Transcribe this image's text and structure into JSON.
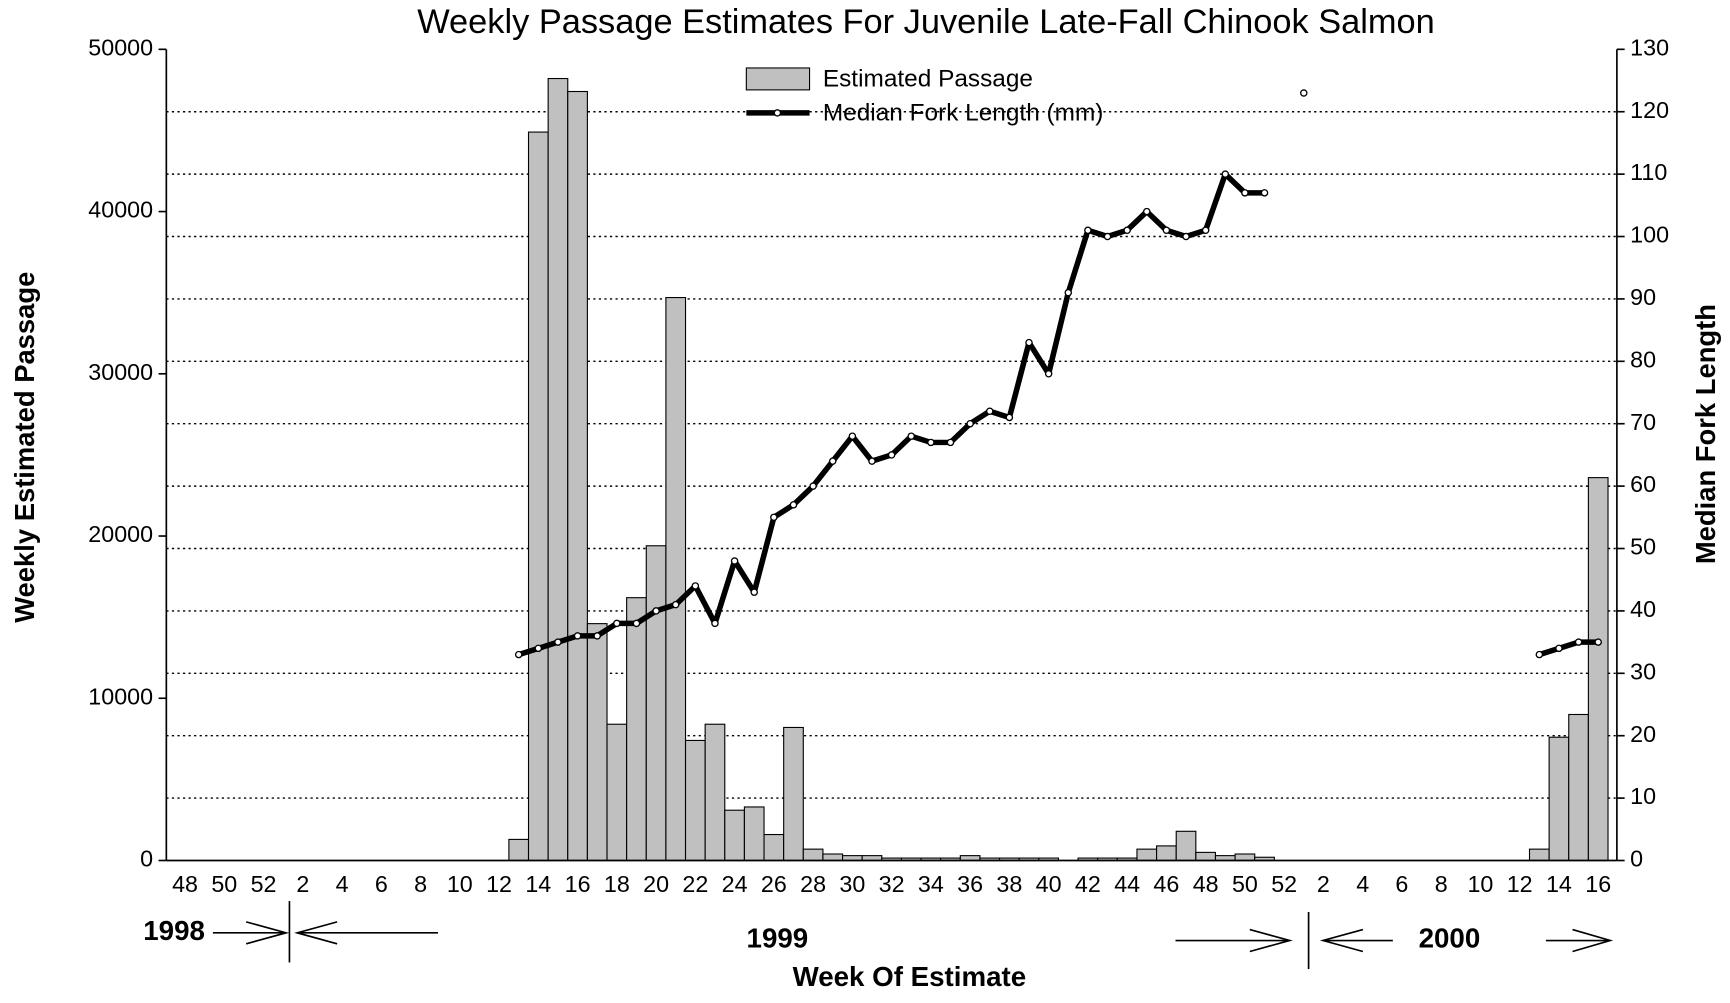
{
  "chart_data": {
    "type": "bar",
    "title": "Weekly Passage Estimates For Juvenile Late-Fall Chinook Salmon",
    "y_label": "Weekly Estimated Passage",
    "y2_label": "Median Fork Length",
    "x_label": "Week Of Estimate",
    "annotations": [
      "1998",
      "1999",
      "2000"
    ],
    "categories": [
      "48",
      null,
      "50",
      null,
      "52",
      null,
      "2",
      null,
      "4",
      null,
      "6",
      null,
      "8",
      null,
      "10",
      null,
      "12",
      null,
      "14",
      null,
      "16",
      null,
      "18",
      null,
      "20",
      null,
      "22",
      null,
      "24",
      null,
      "26",
      null,
      "28",
      null,
      "30",
      null,
      "32",
      null,
      "34",
      null,
      "36",
      null,
      "38",
      null,
      "40",
      null,
      "42",
      null,
      "44",
      null,
      "46",
      null,
      "48",
      null,
      "50",
      null,
      "52",
      null,
      "2",
      null,
      "4",
      null,
      "6",
      null,
      "8",
      null,
      "10",
      null,
      "12",
      null,
      "14",
      null,
      "16"
    ],
    "series": [
      {
        "name": "Estimated Passage",
        "type": "bar",
        "color": "#c0c0c0",
        "values": [
          0,
          0,
          0,
          0,
          0,
          0,
          0,
          0,
          0,
          0,
          0,
          0,
          0,
          0,
          0,
          0,
          0,
          1300,
          44900,
          48200,
          47400,
          14600,
          8400,
          16200,
          19400,
          34700,
          7400,
          8400,
          3100,
          3300,
          1600,
          8200,
          700,
          400,
          300,
          300,
          150,
          150,
          150,
          150,
          300,
          150,
          150,
          150,
          150,
          0,
          150,
          150,
          150,
          700,
          900,
          1800,
          500,
          300,
          400,
          200,
          0,
          0,
          0,
          0,
          0,
          0,
          0,
          0,
          0,
          0,
          0,
          0,
          0,
          700,
          7600,
          9000,
          23600
        ]
      },
      {
        "name": "Median Fork Length (mm)",
        "type": "line",
        "axis": "y2",
        "color": "#000000",
        "values": [
          null,
          null,
          null,
          null,
          null,
          null,
          null,
          null,
          null,
          null,
          null,
          null,
          null,
          null,
          null,
          null,
          null,
          33,
          34,
          35,
          36,
          36,
          38,
          38,
          40,
          41,
          44,
          38,
          48,
          43,
          55,
          57,
          60,
          64,
          68,
          64,
          65,
          68,
          67,
          67,
          70,
          72,
          71,
          83,
          78,
          91,
          101,
          100,
          101,
          104,
          101,
          100,
          101,
          110,
          107,
          107,
          null,
          123,
          null,
          null,
          null,
          null,
          null,
          null,
          null,
          null,
          null,
          null,
          null,
          33,
          34,
          35,
          35
        ]
      }
    ],
    "ylim": [
      0,
      50000
    ],
    "yticks": [
      0,
      10000,
      20000,
      30000,
      40000,
      50000
    ],
    "y2lim": [
      0,
      130
    ],
    "y2ticks": [
      0,
      10,
      20,
      30,
      40,
      50,
      60,
      70,
      80,
      90,
      100,
      110,
      120,
      130
    ],
    "grid": "y2",
    "legend": "top"
  }
}
